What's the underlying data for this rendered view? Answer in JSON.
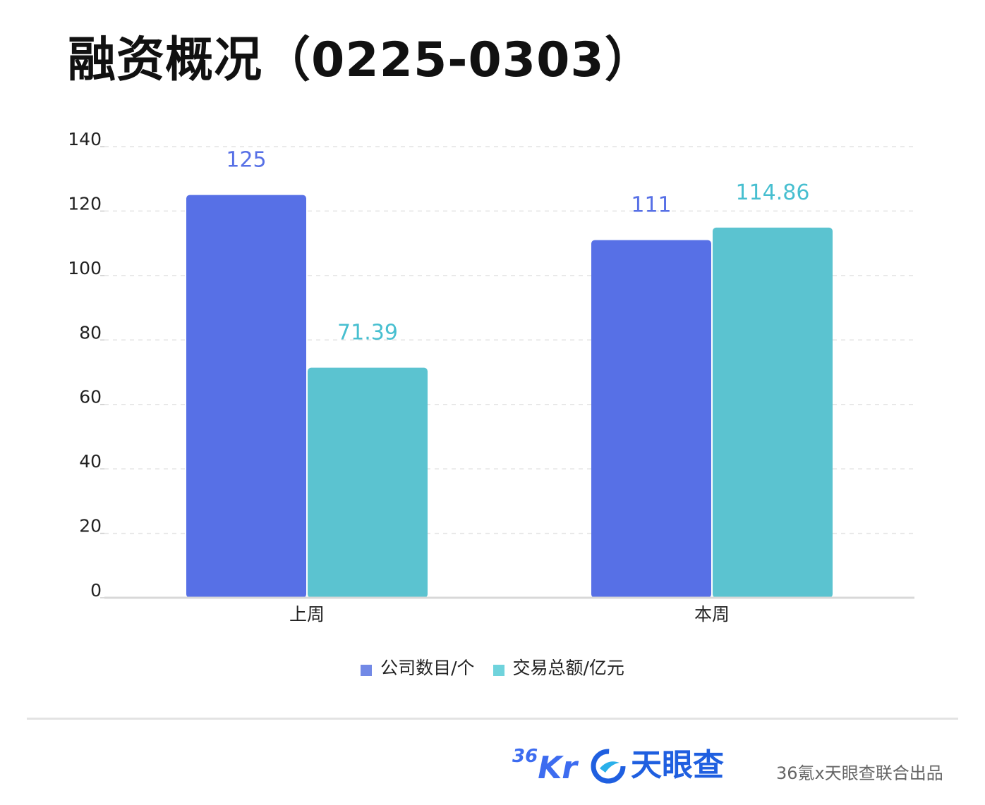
{
  "title": "融资概况（0225-0303）",
  "chart_data": {
    "type": "bar",
    "categories": [
      "上周",
      "本周"
    ],
    "series": [
      {
        "name": "公司数目/个",
        "values": [
          125,
          111
        ],
        "color": "#5770e6"
      },
      {
        "name": "交易总额/亿元",
        "values": [
          71.39,
          114.86
        ],
        "color": "#5bc3d0"
      }
    ],
    "data_labels": [
      [
        "125",
        "111"
      ],
      [
        "71.39",
        "114.86"
      ]
    ],
    "label_colors": [
      "#5770e6",
      "#47bfd0"
    ],
    "ylim": [
      0,
      140
    ],
    "yticks": [
      0,
      20,
      40,
      60,
      80,
      100,
      120,
      140
    ],
    "grid": true,
    "legend_position": "bottom"
  },
  "legend": [
    {
      "label": "公司数目/个",
      "color": "#7289e6"
    },
    {
      "label": "交易总额/亿元",
      "color": "#6fd3dc"
    }
  ],
  "footer": {
    "logo_36kr_sup": "36",
    "logo_36kr_main": "Kr",
    "logo_tyc_name": "天眼查",
    "credit": "36氪x天眼查联合出品"
  },
  "icons": [
    "tianyancha-logo-icon"
  ]
}
